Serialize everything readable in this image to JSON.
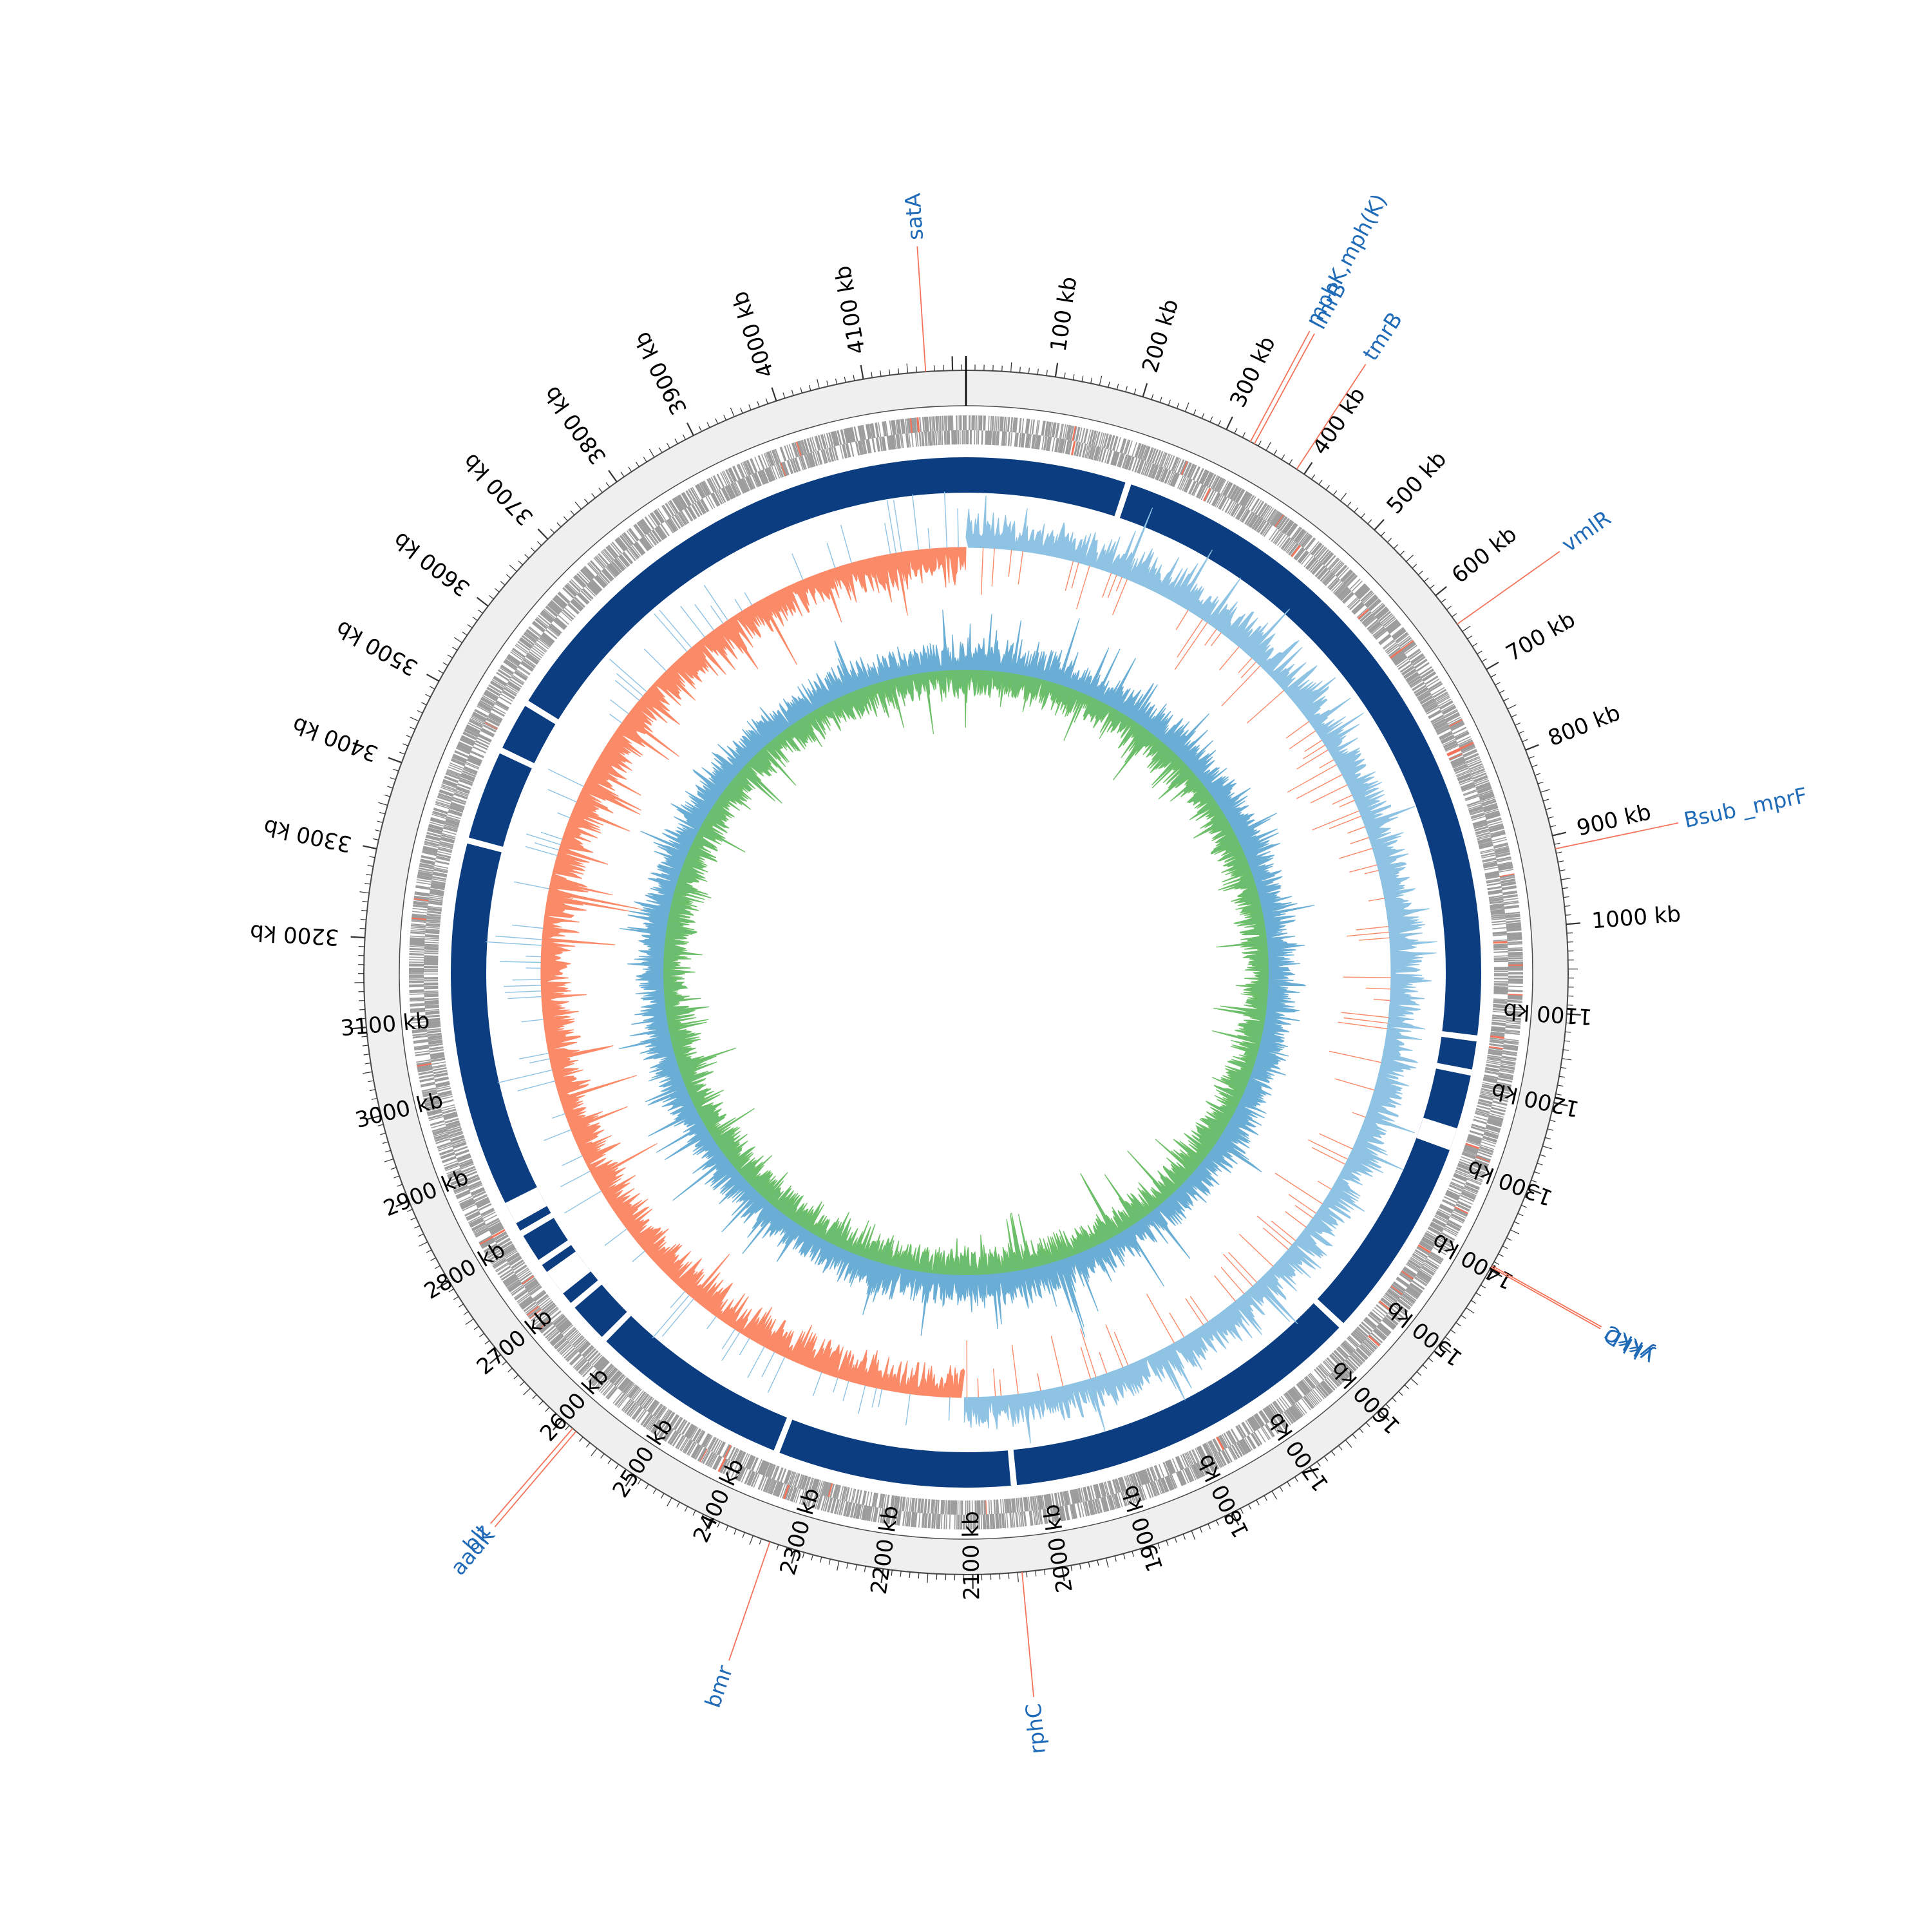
{
  "genome_map": {
    "genome_length_kb": 4215,
    "ticks": [
      {
        "kb": 0,
        "label": ""
      },
      {
        "kb": 100,
        "label": "100 kb"
      },
      {
        "kb": 200,
        "label": "200 kb"
      },
      {
        "kb": 300,
        "label": "300 kb"
      },
      {
        "kb": 400,
        "label": "400 kb"
      },
      {
        "kb": 500,
        "label": "500 kb"
      },
      {
        "kb": 600,
        "label": "600 kb"
      },
      {
        "kb": 700,
        "label": "700 kb"
      },
      {
        "kb": 800,
        "label": "800 kb"
      },
      {
        "kb": 900,
        "label": "900 kb"
      },
      {
        "kb": 1000,
        "label": "1000 kb"
      },
      {
        "kb": 1100,
        "label": "1100 kb"
      },
      {
        "kb": 1200,
        "label": "1200 kb"
      },
      {
        "kb": 1300,
        "label": "1300 kb"
      },
      {
        "kb": 1400,
        "label": "1400 kb"
      },
      {
        "kb": 1500,
        "label": "1500 kb"
      },
      {
        "kb": 1600,
        "label": "1600 kb"
      },
      {
        "kb": 1700,
        "label": "1700 kb"
      },
      {
        "kb": 1800,
        "label": "1800 kb"
      },
      {
        "kb": 1900,
        "label": "1900 kb"
      },
      {
        "kb": 2000,
        "label": "2000 kb"
      },
      {
        "kb": 2100,
        "label": "2100 kb"
      },
      {
        "kb": 2200,
        "label": "2200 kb"
      },
      {
        "kb": 2300,
        "label": "2300 kb"
      },
      {
        "kb": 2400,
        "label": "2400 kb"
      },
      {
        "kb": 2500,
        "label": "2500 kb"
      },
      {
        "kb": 2600,
        "label": "2600 kb"
      },
      {
        "kb": 2700,
        "label": "2700 kb"
      },
      {
        "kb": 2800,
        "label": "2800 kb"
      },
      {
        "kb": 2900,
        "label": "2900 kb"
      },
      {
        "kb": 3000,
        "label": "3000 kb"
      },
      {
        "kb": 3100,
        "label": "3100 kb"
      },
      {
        "kb": 3200,
        "label": "3200 kb"
      },
      {
        "kb": 3300,
        "label": "3300 kb"
      },
      {
        "kb": 3400,
        "label": "3400 kb"
      },
      {
        "kb": 3500,
        "label": "3500 kb"
      },
      {
        "kb": 3600,
        "label": "3600 kb"
      },
      {
        "kb": 3700,
        "label": "3700 kb"
      },
      {
        "kb": 3800,
        "label": "3800 kb"
      },
      {
        "kb": 3900,
        "label": "3900 kb"
      },
      {
        "kb": 4000,
        "label": "4000 kb"
      },
      {
        "kb": 4100,
        "label": "4100 kb"
      }
    ],
    "gene_annotations": [
      {
        "name": "satA",
        "kb": 4170
      },
      {
        "name": "mphK,mph(K)",
        "kb": 330
      },
      {
        "name": "lmrB",
        "kb": 335
      },
      {
        "name": "tmrB",
        "kb": 390
      },
      {
        "name": "vmlR",
        "kb": 640
      },
      {
        "name": "Bsub _mprF",
        "kb": 915
      },
      {
        "name": "ykkC",
        "kb": 1395
      },
      {
        "name": "ykkD",
        "kb": 1397
      },
      {
        "name": "rphC",
        "kb": 2045
      },
      {
        "name": "bmr",
        "kb": 2330
      },
      {
        "name": "aadK",
        "kb": 2580
      },
      {
        "name": "blt",
        "kb": 2585
      }
    ],
    "contig_gaps_kb": [
      215,
      1140,
      1185,
      1560,
      2045,
      2360,
      2630,
      2690,
      2760,
      2805,
      3335,
      3460,
      3530
    ],
    "colors": {
      "tick_ring": "#efefef",
      "gene_track": "#9c9c9c",
      "gene_highlight": "#f4735a",
      "contig": "#0b3d80",
      "gc_skew_positive": "#8fc3e4",
      "gc_skew_negative": "#fb8a68",
      "gc_content_outer": "#6aaed6",
      "gc_content_inner": "#6cbf66",
      "annotation_line": "#f4735a",
      "annotation_text": "#1f6bb8"
    }
  }
}
